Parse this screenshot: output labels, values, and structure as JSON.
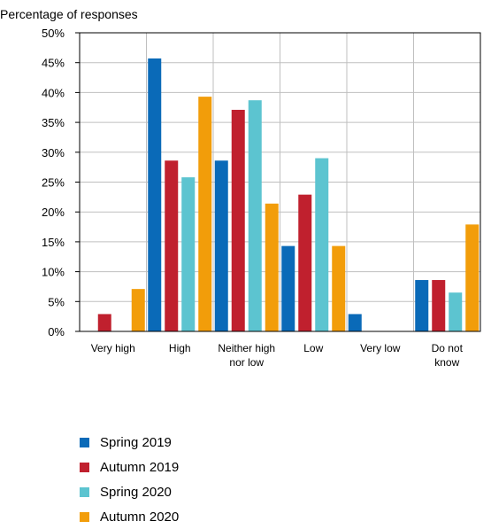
{
  "chart_data": {
    "type": "bar",
    "title": "Percentage of responses",
    "categories": [
      "Very high",
      "High",
      "Neither high nor low",
      "Low",
      "Very low",
      "Do not know"
    ],
    "category_lines": [
      [
        "Very high"
      ],
      [
        "High"
      ],
      [
        "Neither high",
        "nor low"
      ],
      [
        "Low"
      ],
      [
        "Very low"
      ],
      [
        "Do not",
        "know"
      ]
    ],
    "series": [
      {
        "name": "Spring 2019",
        "color": "#0a6ab8",
        "values": [
          0,
          45.7,
          28.6,
          14.3,
          2.9,
          8.6
        ]
      },
      {
        "name": "Autumn 2019",
        "color": "#c0202e",
        "values": [
          2.9,
          28.6,
          37.1,
          22.9,
          0,
          8.6
        ]
      },
      {
        "name": "Spring 2020",
        "color": "#5cc4d0",
        "values": [
          0,
          25.8,
          38.7,
          29.0,
          0,
          6.5
        ]
      },
      {
        "name": "Autumn 2020",
        "color": "#f29d0a",
        "values": [
          7.1,
          39.3,
          21.4,
          14.3,
          0,
          17.9
        ]
      }
    ],
    "yticks": [
      "0%",
      "5%",
      "10%",
      "15%",
      "20%",
      "25%",
      "30%",
      "35%",
      "40%",
      "45%",
      "50%"
    ],
    "ylim": [
      0,
      50
    ],
    "grid": true,
    "legend_position": "bottom-left"
  }
}
